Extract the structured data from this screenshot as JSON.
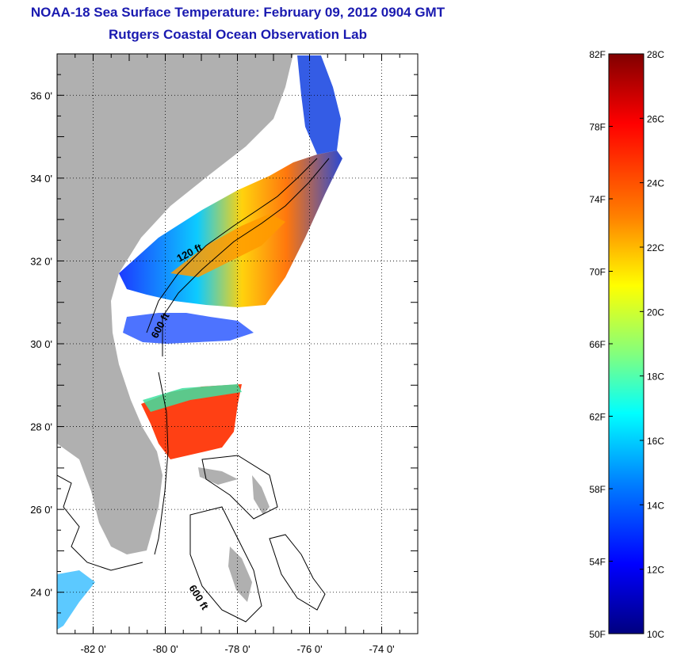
{
  "title": "NOAA-18 Sea Surface Temperature:  February 09, 2012 0904 GMT",
  "subtitle": "Rutgers Coastal Ocean Observation Lab",
  "map": {
    "lon_range": [
      -83,
      -73
    ],
    "lat_range": [
      23,
      37
    ],
    "x_ticks": [
      {
        "value": -82,
        "label": "-82 0'"
      },
      {
        "value": -80,
        "label": "-80 0'"
      },
      {
        "value": -78,
        "label": "-78 0'"
      },
      {
        "value": -76,
        "label": "-76 0'"
      },
      {
        "value": -74,
        "label": "-74 0'"
      }
    ],
    "y_ticks": [
      {
        "value": 24,
        "label": "24 0'"
      },
      {
        "value": 26,
        "label": "26 0'"
      },
      {
        "value": 28,
        "label": "28 0'"
      },
      {
        "value": 30,
        "label": "30 0'"
      },
      {
        "value": 32,
        "label": "32 0'"
      },
      {
        "value": 34,
        "label": "34 0'"
      },
      {
        "value": 36,
        "label": "36 0'"
      }
    ],
    "grid": "dotted",
    "land_color": "#b0b0b0",
    "isobath_labels": [
      "120 ft",
      "600 ft",
      "600 ft"
    ]
  },
  "colorbar": {
    "f_labels": [
      "82F",
      "78F",
      "74F",
      "70F",
      "66F",
      "62F",
      "58F",
      "54F",
      "50F"
    ],
    "c_labels": [
      "28C",
      "26C",
      "24C",
      "22C",
      "20C",
      "18C",
      "16C",
      "14C",
      "12C",
      "10C"
    ],
    "colors": [
      "#800000",
      "#ff0000",
      "#ff8000",
      "#ffff00",
      "#80ff80",
      "#00ffff",
      "#0080ff",
      "#0000ff",
      "#000080"
    ]
  }
}
